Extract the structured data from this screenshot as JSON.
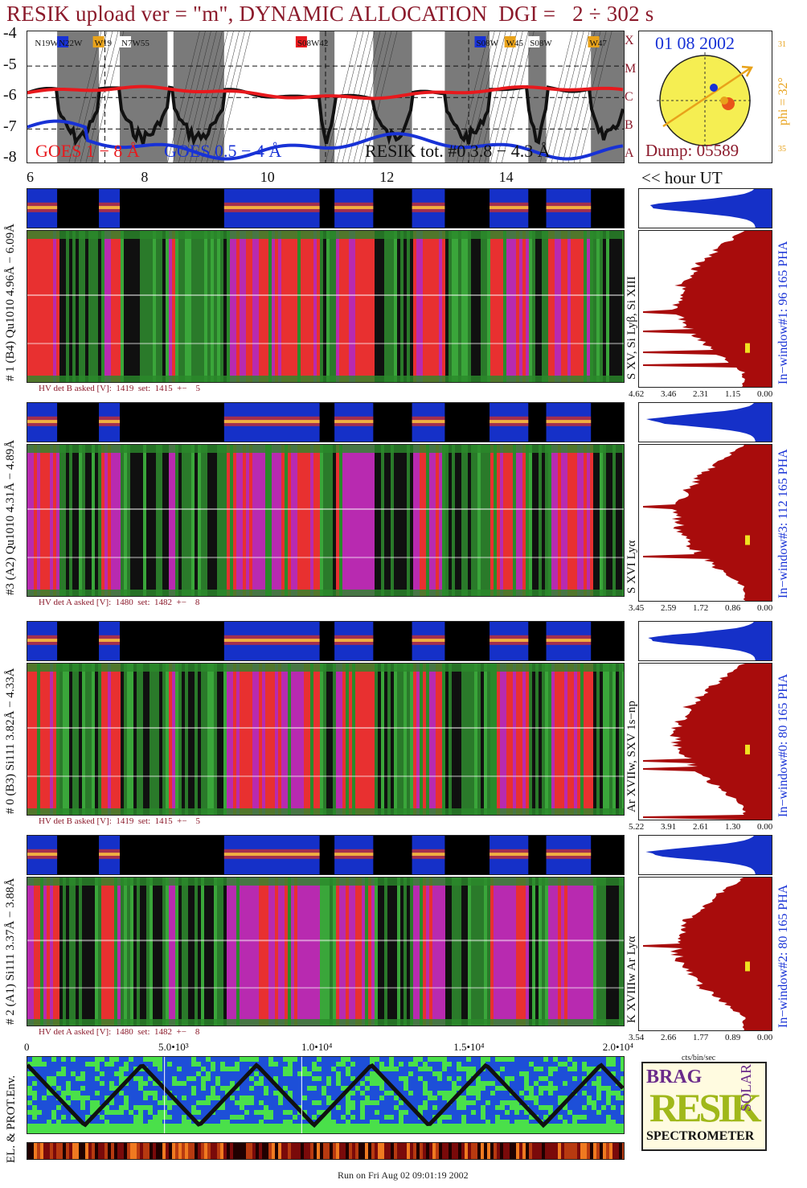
{
  "title": "RESIK upload ver = \"m\", DYNAMIC ALLOCATION  DGI =   2 ÷ 302 s",
  "goes": {
    "y_ticks": [
      "-4",
      "-5",
      "-6",
      "-7",
      "-8"
    ],
    "x_ticks": [
      "6",
      "8",
      "10",
      "12",
      "14"
    ],
    "hour_label": "<< hour UT",
    "legend": [
      "GOES 1 − 8 Å",
      "GOES 0.5 − 4 Å",
      "RESIK tot. #0   3.8 − 4.3 Å"
    ],
    "class_letters": [
      "A",
      "B",
      "C",
      "M",
      "X"
    ],
    "flare_labels": [
      "N19W",
      "N22W",
      "W19",
      "N7W55",
      "S08W42",
      "S08W",
      "W45",
      "S08W",
      "W47"
    ],
    "colors": {
      "goes_long": "#e8191d",
      "goes_short": "#1832d6",
      "resik": "#111111",
      "dark_band": "#7a7a7a",
      "light_band": "#b0b0b0"
    }
  },
  "sun": {
    "date": "01 08 2002",
    "phi": "phi = 32°",
    "tick_top": "31",
    "tick_bottom": "35",
    "dump": "Dump: 05589"
  },
  "detectors": [
    {
      "left_label": "# 1 (B4) Qu1010  4.96Å − 6.09Å",
      "hv": "HV det B asked [V]:  1419  set:  1415  +−    5",
      "ions": "S XV, Si Lyβ, Si XIII",
      "window": "In−window#1:   96 165  PHA",
      "ticks": [
        "4.62",
        "3.46",
        "2.31",
        "1.15",
        "0.00"
      ],
      "bar_frac": 0.72,
      "spikes": [
        0.52,
        0.64,
        0.78,
        0.86
      ]
    },
    {
      "left_label": "#3 (A2) Qu1010  4.31Å − 4.89Å",
      "hv": "HV det A asked [V]:  1480  set:  1482  +−    8",
      "ions": "S XVI Lyα",
      "window": "In−window#3:   112 165  PHA",
      "ticks": [
        "3.45",
        "2.59",
        "1.72",
        "0.86",
        "0.00"
      ],
      "bar_frac": 0.58,
      "spikes": [
        0.4,
        0.72
      ]
    },
    {
      "left_label": "# 0 (B3) Si111  3.82Å − 4.33Å",
      "hv": "HV det B asked [V]:  1419  set:  1415  +−    5",
      "ions": "Ar XVIIw, SXV 1s−np",
      "window": "In−window#0:   80 165  PHA",
      "ticks": [
        "5.22",
        "3.91",
        "2.61",
        "1.30",
        "0.00"
      ],
      "bar_frac": 0.52,
      "spikes": [
        0.62,
        0.68,
        0.98
      ]
    },
    {
      "left_label": "# 2 (A1) Si111  3.37Å − 3.88Å",
      "hv": "HV det A asked [V]:  1480  set:  1482  +−    8",
      "ions": "K XVIIIw   Ar Lyα",
      "window": "In−window#2:   80 165  PHA",
      "ticks": [
        "3.54",
        "2.66",
        "1.77",
        "0.89",
        "0.00"
      ],
      "bar_frac": 0.55,
      "spikes": [
        0.45
      ]
    }
  ],
  "pha_units": "cts/bin/sec",
  "secs_ticks": [
    "0",
    "5.0•10³",
    "1.0•10⁴",
    "1.5•10⁴",
    "2.0•10⁴"
  ],
  "env_label": "EL. & PROT.Env.",
  "logo": {
    "line1": "BRAG",
    "mid": "RESIK",
    "right": "SOLAR",
    "bottom": "SPECTROMETER"
  },
  "run": "Run on Fri Aug 02 09:01:19 2002"
}
